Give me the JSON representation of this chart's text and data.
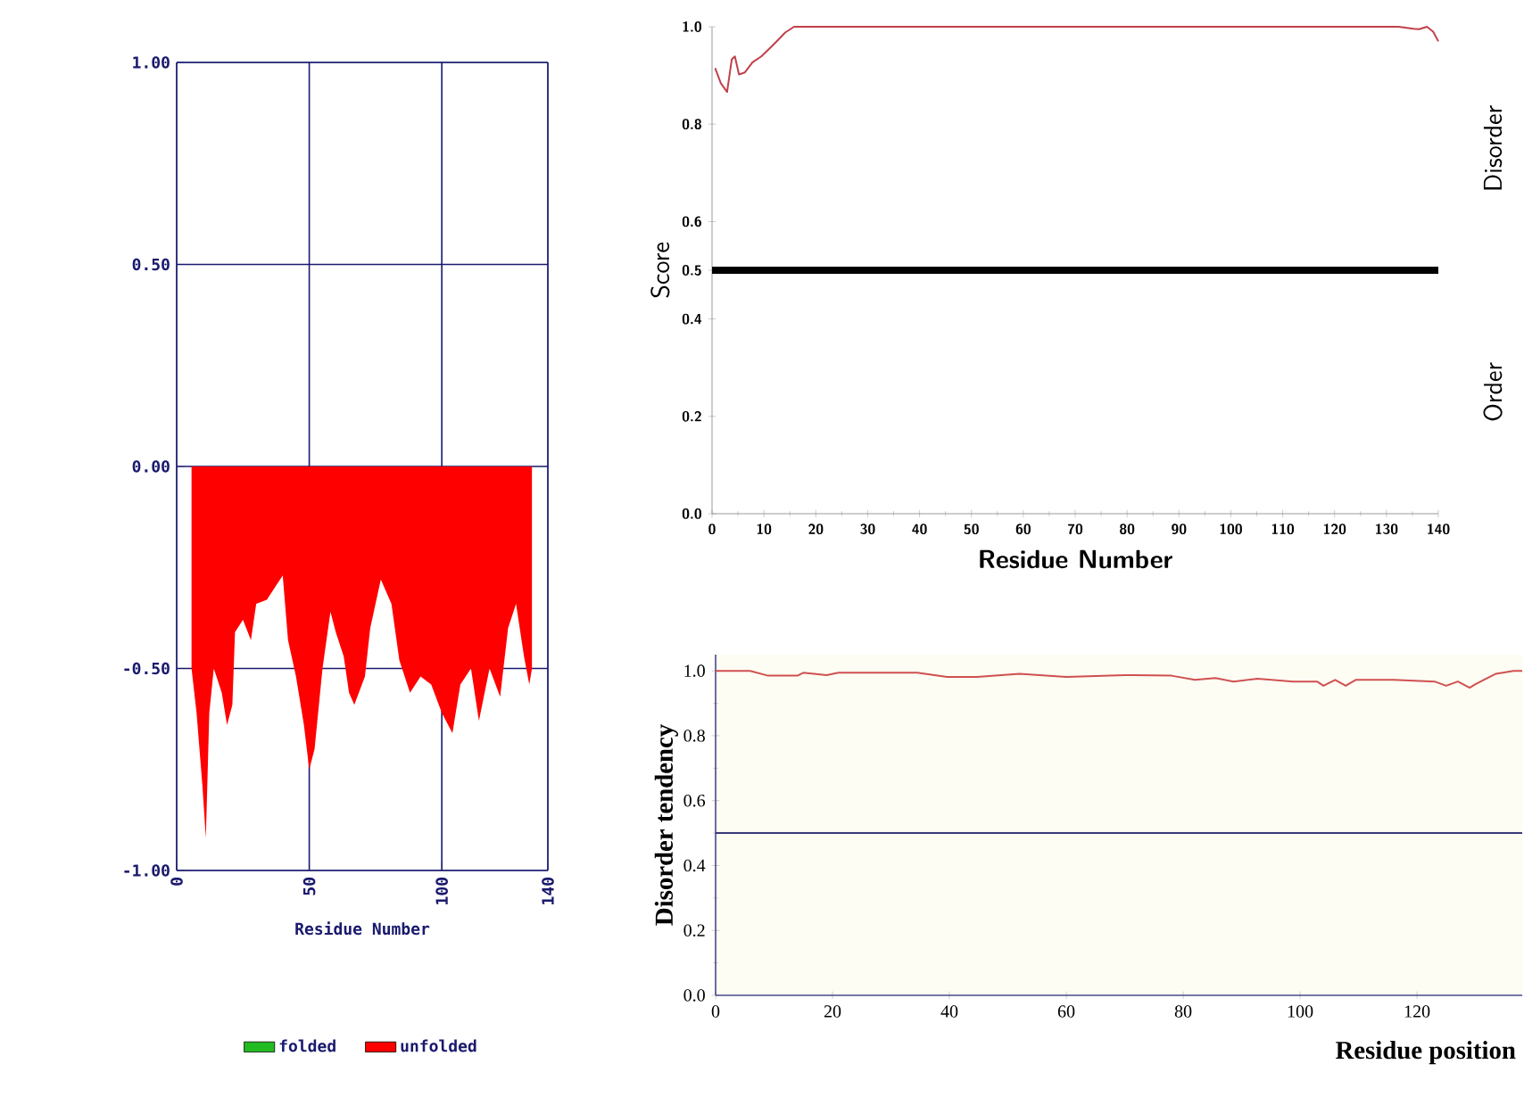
{
  "chart_data": [
    {
      "type": "area",
      "xlabel": "Residue Number",
      "xlim": [
        0,
        140
      ],
      "ylim": [
        -1,
        1
      ],
      "xticks": [
        0,
        50,
        100,
        140
      ],
      "yticks": [
        {
          "value": -1,
          "label": "-1.00"
        },
        {
          "value": -0.5,
          "label": "-0.50"
        },
        {
          "value": 0,
          "label": "0.00"
        },
        {
          "value": 0.5,
          "label": "0.50"
        },
        {
          "value": 1,
          "label": "1.00"
        }
      ],
      "grid": true,
      "legend": "bottom",
      "series": [
        {
          "name": "folded",
          "color": "#22bb22"
        },
        {
          "name": "unfolded",
          "color": "#ff0000",
          "x": [
            5.6,
            7.5,
            9.7,
            11,
            12.3,
            14,
            17,
            19,
            21,
            22,
            25,
            28,
            30,
            34,
            38,
            40,
            42,
            45,
            48,
            50,
            52,
            55,
            58,
            60,
            63,
            65,
            67,
            71,
            73,
            77,
            81,
            84,
            88,
            92,
            96,
            100,
            104,
            107,
            111,
            114,
            118,
            122,
            125,
            128,
            131,
            133,
            134
          ],
          "values": [
            -0.5,
            -0.61,
            -0.79,
            -0.92,
            -0.61,
            -0.5,
            -0.56,
            -0.64,
            -0.59,
            -0.41,
            -0.38,
            -0.43,
            -0.34,
            -0.33,
            -0.29,
            -0.27,
            -0.43,
            -0.52,
            -0.64,
            -0.75,
            -0.7,
            -0.5,
            -0.36,
            -0.41,
            -0.47,
            -0.56,
            -0.59,
            -0.52,
            -0.4,
            -0.28,
            -0.34,
            -0.48,
            -0.56,
            -0.52,
            -0.54,
            -0.61,
            -0.66,
            -0.54,
            -0.5,
            -0.63,
            -0.5,
            -0.57,
            -0.4,
            -0.34,
            -0.47,
            -0.54,
            -0.5
          ]
        }
      ]
    },
    {
      "type": "line",
      "xlabel": "Residue Number",
      "ylabel": "Score",
      "xlim": [
        0,
        140
      ],
      "ylim": [
        0,
        1
      ],
      "xticks": [
        0,
        10,
        20,
        30,
        40,
        50,
        60,
        70,
        80,
        90,
        100,
        110,
        120,
        130,
        140
      ],
      "yticks": [
        {
          "value": 0,
          "label": "0.0"
        },
        {
          "value": 0.2,
          "label": "0.2"
        },
        {
          "value": 0.4,
          "label": "0.4"
        },
        {
          "value": 0.5,
          "label": "0.5"
        },
        {
          "value": 0.6,
          "label": "0.6"
        },
        {
          "value": 0.8,
          "label": "0.8"
        },
        {
          "value": 1,
          "label": "1.0"
        }
      ],
      "annotations": [
        "Disorder",
        "Order"
      ],
      "ref_lines": [
        {
          "axis": "y",
          "value": 0.5,
          "color": "#000000"
        }
      ],
      "series": [
        {
          "color": "#c0404a",
          "x": [
            0.6,
            1.7,
            2.9,
            3.8,
            4.4,
            5.2,
            6.3,
            7.8,
            9.5,
            11.8,
            14.1,
            15.8,
            132.3,
            135.2,
            136.3,
            137.8,
            139,
            140
          ],
          "values": [
            0.915,
            0.884,
            0.866,
            0.933,
            0.939,
            0.902,
            0.906,
            0.927,
            0.939,
            0.963,
            0.988,
            1.0,
            1.0,
            0.996,
            0.995,
            1.0,
            0.99,
            0.97
          ]
        }
      ]
    },
    {
      "type": "line",
      "xlabel": "Residue position",
      "ylabel": "Disorder tendency",
      "xlim": [
        0,
        138
      ],
      "ylim": [
        0,
        1.05
      ],
      "xticks": [
        0,
        20,
        40,
        60,
        80,
        100,
        120
      ],
      "yticks": [
        {
          "value": 0,
          "label": "0.0"
        },
        {
          "value": 0.2,
          "label": "0.2"
        },
        {
          "value": 0.4,
          "label": "0.4"
        },
        {
          "value": 0.6,
          "label": "0.6"
        },
        {
          "value": 0.8,
          "label": "0.8"
        },
        {
          "value": 1,
          "label": "1.0"
        }
      ],
      "ref_lines": [
        {
          "axis": "y",
          "value": 0.5,
          "color": "#3a3a7a"
        }
      ],
      "series": [
        {
          "color": "#d05050",
          "x": [
            0,
            5.9,
            9,
            14,
            15,
            19,
            21,
            34.5,
            39.6,
            44.7,
            52,
            60,
            70,
            78,
            82,
            85.5,
            88.6,
            92.7,
            98.8,
            102.9,
            104,
            106,
            107.8,
            109.5,
            116,
            123,
            125,
            127,
            129,
            130,
            133.5,
            136.5,
            138
          ],
          "values": [
            1.0,
            1.0,
            0.985,
            0.985,
            0.994,
            0.987,
            0.994,
            0.994,
            0.981,
            0.981,
            0.991,
            0.981,
            0.987,
            0.985,
            0.972,
            0.978,
            0.967,
            0.976,
            0.967,
            0.967,
            0.954,
            0.972,
            0.954,
            0.972,
            0.972,
            0.967,
            0.954,
            0.967,
            0.948,
            0.959,
            0.991,
            1.0,
            1.0
          ]
        }
      ]
    }
  ]
}
